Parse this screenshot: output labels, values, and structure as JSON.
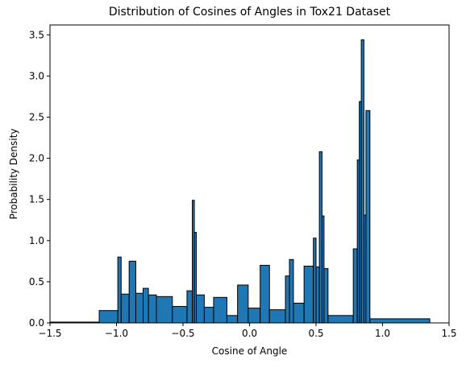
{
  "chart_data": {
    "type": "bar",
    "subtype": "histogram",
    "title": "Distribution of Cosines of Angles in Tox21 Dataset",
    "xlabel": "Cosine of Angle",
    "ylabel": "Probability Density",
    "xlim": [
      -1.5,
      1.5
    ],
    "ylim": [
      0,
      3.62
    ],
    "xticks": [
      -1.5,
      -1.0,
      -0.5,
      0.0,
      0.5,
      1.0,
      1.5
    ],
    "xtick_labels": [
      "−1.5",
      "−1.0",
      "−0.5",
      "0.0",
      "0.5",
      "1.0",
      "1.5"
    ],
    "yticks": [
      0.0,
      0.5,
      1.0,
      1.5,
      2.0,
      2.5,
      3.0,
      3.5
    ],
    "ytick_labels": [
      "0.0",
      "0.5",
      "1.0",
      "1.5",
      "2.0",
      "2.5",
      "3.0",
      "3.5"
    ],
    "grid": false,
    "legend": "none",
    "bar_color": "#1f77b4",
    "edge_color": "#000000",
    "bins": [
      {
        "x0": -1.5,
        "x1": -1.13,
        "value": 0.01
      },
      {
        "x0": -1.13,
        "x1": -0.99,
        "value": 0.15
      },
      {
        "x0": -0.99,
        "x1": -0.965,
        "value": 0.8
      },
      {
        "x0": -0.965,
        "x1": -0.905,
        "value": 0.35
      },
      {
        "x0": -0.905,
        "x1": -0.855,
        "value": 0.75
      },
      {
        "x0": -0.855,
        "x1": -0.8,
        "value": 0.36
      },
      {
        "x0": -0.8,
        "x1": -0.76,
        "value": 0.42
      },
      {
        "x0": -0.76,
        "x1": -0.7,
        "value": 0.34
      },
      {
        "x0": -0.7,
        "x1": -0.58,
        "value": 0.32
      },
      {
        "x0": -0.58,
        "x1": -0.47,
        "value": 0.2
      },
      {
        "x0": -0.47,
        "x1": -0.43,
        "value": 0.39
      },
      {
        "x0": -0.43,
        "x1": -0.415,
        "value": 1.49
      },
      {
        "x0": -0.415,
        "x1": -0.4,
        "value": 1.1
      },
      {
        "x0": -0.4,
        "x1": -0.34,
        "value": 0.34
      },
      {
        "x0": -0.34,
        "x1": -0.27,
        "value": 0.19
      },
      {
        "x0": -0.27,
        "x1": -0.17,
        "value": 0.31
      },
      {
        "x0": -0.17,
        "x1": -0.09,
        "value": 0.09
      },
      {
        "x0": -0.09,
        "x1": -0.01,
        "value": 0.46
      },
      {
        "x0": -0.01,
        "x1": 0.08,
        "value": 0.18
      },
      {
        "x0": 0.08,
        "x1": 0.15,
        "value": 0.7
      },
      {
        "x0": 0.15,
        "x1": 0.27,
        "value": 0.16
      },
      {
        "x0": 0.27,
        "x1": 0.3,
        "value": 0.57
      },
      {
        "x0": 0.3,
        "x1": 0.33,
        "value": 0.77
      },
      {
        "x0": 0.33,
        "x1": 0.41,
        "value": 0.24
      },
      {
        "x0": 0.41,
        "x1": 0.48,
        "value": 0.69
      },
      {
        "x0": 0.48,
        "x1": 0.5,
        "value": 1.03
      },
      {
        "x0": 0.5,
        "x1": 0.525,
        "value": 0.68
      },
      {
        "x0": 0.525,
        "x1": 0.545,
        "value": 2.08
      },
      {
        "x0": 0.545,
        "x1": 0.56,
        "value": 1.3
      },
      {
        "x0": 0.56,
        "x1": 0.59,
        "value": 0.66
      },
      {
        "x0": 0.59,
        "x1": 0.78,
        "value": 0.09
      },
      {
        "x0": 0.78,
        "x1": 0.81,
        "value": 0.9
      },
      {
        "x0": 0.81,
        "x1": 0.825,
        "value": 1.98
      },
      {
        "x0": 0.825,
        "x1": 0.84,
        "value": 2.69
      },
      {
        "x0": 0.84,
        "x1": 0.86,
        "value": 3.44
      },
      {
        "x0": 0.86,
        "x1": 0.875,
        "value": 1.31
      },
      {
        "x0": 0.875,
        "x1": 0.905,
        "value": 2.58
      },
      {
        "x0": 0.905,
        "x1": 1.355,
        "value": 0.05
      }
    ]
  }
}
